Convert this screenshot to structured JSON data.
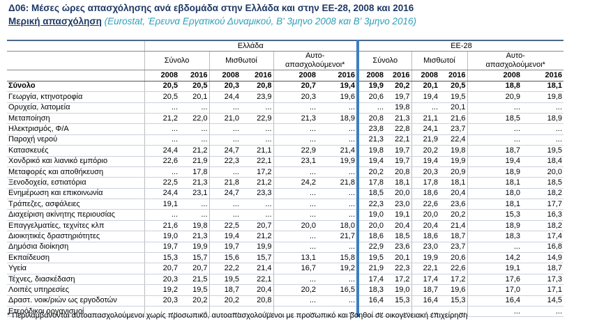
{
  "header": {
    "title": "Δ06: Μέσες ώρες απασχόλησης ανά εβδομάδα στην Ελλάδα και στην ΕΕ-28, 2008 και 2016",
    "subtitle": "Μερική απασχόληση",
    "source": "(Eurostat, Έρευνα Εργατικού Δυναμικού, Β' 3μηνο 2008 και Β' 3μηνο 2016)"
  },
  "table": {
    "regions": [
      "Ελλάδα",
      "ΕΕ-28"
    ],
    "groups": [
      "Σύνολο",
      "Μισθωτοί",
      [
        "Αυτο-",
        "απασχολούμενοι*"
      ]
    ],
    "years": [
      "2008",
      "2016"
    ],
    "rows": [
      {
        "label": "Σύνολο",
        "cells": [
          "20,5",
          "20,5",
          "20,3",
          "20,8",
          "20,7",
          "19,4",
          "19,9",
          "20,2",
          "20,1",
          "20,5",
          "18,8",
          "18,1"
        ]
      },
      {
        "label": "Γεωργία, κτηνοτροφία",
        "cells": [
          "20,5",
          "20,1",
          "24,4",
          "23,9",
          "20,3",
          "19,6",
          "20,6",
          "19,7",
          "19,4",
          "19,5",
          "20,9",
          "19,8"
        ]
      },
      {
        "label": "Ορυχεία, λατομεία",
        "cells": [
          "...",
          "...",
          "...",
          "...",
          "...",
          "...",
          "...",
          "19,8",
          "...",
          "20,1",
          "...",
          "..."
        ]
      },
      {
        "label": "Μεταποίηση",
        "cells": [
          "21,2",
          "22,0",
          "21,0",
          "22,9",
          "21,3",
          "18,9",
          "20,8",
          "21,3",
          "21,1",
          "21,6",
          "18,5",
          "18,9"
        ]
      },
      {
        "label": "Ηλεκτρισμός, Φ/Α",
        "cells": [
          "...",
          "...",
          "...",
          "...",
          "...",
          "...",
          "23,8",
          "22,8",
          "24,1",
          "23,7",
          "...",
          "..."
        ]
      },
      {
        "label": "Παροχή νερού",
        "cells": [
          "...",
          "...",
          "...",
          "...",
          "...",
          "...",
          "21,3",
          "22,1",
          "21,9",
          "22,4",
          "...",
          "..."
        ]
      },
      {
        "label": "Κατασκευές",
        "cells": [
          "24,4",
          "21,2",
          "24,7",
          "21,1",
          "22,9",
          "21,4",
          "19,8",
          "19,7",
          "20,2",
          "19,8",
          "18,7",
          "19,5"
        ]
      },
      {
        "label": "Χονδρικό και λιανικό εμπόριο",
        "cells": [
          "22,6",
          "21,9",
          "22,3",
          "22,1",
          "23,1",
          "19,9",
          "19,4",
          "19,7",
          "19,4",
          "19,9",
          "19,4",
          "18,4"
        ]
      },
      {
        "label": "Μεταφορές και αποθήκευση",
        "cells": [
          "...",
          "17,8",
          "...",
          "17,2",
          "...",
          "...",
          "20,2",
          "20,8",
          "20,3",
          "20,9",
          "18,9",
          "20,0"
        ]
      },
      {
        "label": "Ξενοδοχεία, εστιατόρια",
        "cells": [
          "22,5",
          "21,3",
          "21,8",
          "21,2",
          "24,2",
          "21,8",
          "17,8",
          "18,1",
          "17,8",
          "18,1",
          "18,1",
          "18,5"
        ]
      },
      {
        "label": "Ενημέρωση και επικοινωνία",
        "cells": [
          "24,4",
          "23,1",
          "24,7",
          "23,3",
          "...",
          "...",
          "18,5",
          "20,0",
          "18,6",
          "20,4",
          "18,0",
          "18,2"
        ]
      },
      {
        "label": "Τράπεζες, ασφάλειες",
        "cells": [
          "19,1",
          "...",
          "...",
          "...",
          "...",
          "...",
          "22,3",
          "23,0",
          "22,6",
          "23,6",
          "18,1",
          "17,7"
        ]
      },
      {
        "label": "Διαχείριση ακίνητης περιουσίας",
        "cells": [
          "...",
          "...",
          "...",
          "...",
          "...",
          "...",
          "19,0",
          "19,1",
          "20,0",
          "20,2",
          "15,3",
          "16,3"
        ]
      },
      {
        "label": "Επαγγελματίες, τεχνίτες κλπ",
        "cells": [
          "21,6",
          "19,8",
          "22,5",
          "20,7",
          "20,0",
          "18,0",
          "20,0",
          "20,4",
          "20,4",
          "21,4",
          "18,9",
          "18,2"
        ]
      },
      {
        "label": "Διοικητικές δραστηριότητες",
        "cells": [
          "19,0",
          "21,3",
          "19,4",
          "21,2",
          "...",
          "21,7",
          "18,6",
          "18,5",
          "18,6",
          "18,7",
          "18,3",
          "17,4"
        ]
      },
      {
        "label": "Δημόσια διοίκηση",
        "cells": [
          "19,7",
          "19,9",
          "19,7",
          "19,9",
          "...",
          "...",
          "22,9",
          "23,6",
          "23,0",
          "23,7",
          "...",
          "16,8"
        ]
      },
      {
        "label": "Εκπαίδευση",
        "cells": [
          "15,3",
          "15,7",
          "15,6",
          "15,7",
          "13,1",
          "15,8",
          "19,5",
          "20,1",
          "19,9",
          "20,6",
          "14,2",
          "14,9"
        ]
      },
      {
        "label": "Υγεία",
        "cells": [
          "20,7",
          "20,7",
          "22,2",
          "21,4",
          "16,7",
          "19,2",
          "21,9",
          "22,3",
          "22,1",
          "22,6",
          "19,1",
          "18,7"
        ]
      },
      {
        "label": "Τέχνες, διασκέδαση",
        "cells": [
          "20,3",
          "21,5",
          "19,5",
          "22,1",
          "...",
          "...",
          "17,4",
          "17,2",
          "17,4",
          "17,2",
          "17,6",
          "17,3"
        ]
      },
      {
        "label": "Λοιπές υπηρεσίες",
        "cells": [
          "19,2",
          "19,5",
          "18,7",
          "20,4",
          "20,2",
          "16,5",
          "18,3",
          "19,0",
          "18,7",
          "19,6",
          "17,0",
          "17,1"
        ]
      },
      {
        "label": "Δραστ. νοικ/ριών ως εργοδοτών",
        "cells": [
          "20,3",
          "20,2",
          "20,2",
          "20,8",
          "...",
          "...",
          "16,4",
          "15,3",
          "16,4",
          "15,3",
          "16,4",
          "14,5"
        ]
      },
      {
        "label": "Ετερόδικοι οργανισμοί",
        "cells": [
          "...",
          "...",
          "...",
          "...",
          "...",
          "...",
          "...",
          "...",
          "...",
          "...",
          "...",
          "..."
        ]
      }
    ]
  },
  "footnote": "* Περιλαμβάνονται αυτοαπασχολούμενοι χωρίς προσωπικό, αυτοαπασχολούμενοι με προσωπικό και βοηθοί σε οικογενειακή επιχείρηση"
}
